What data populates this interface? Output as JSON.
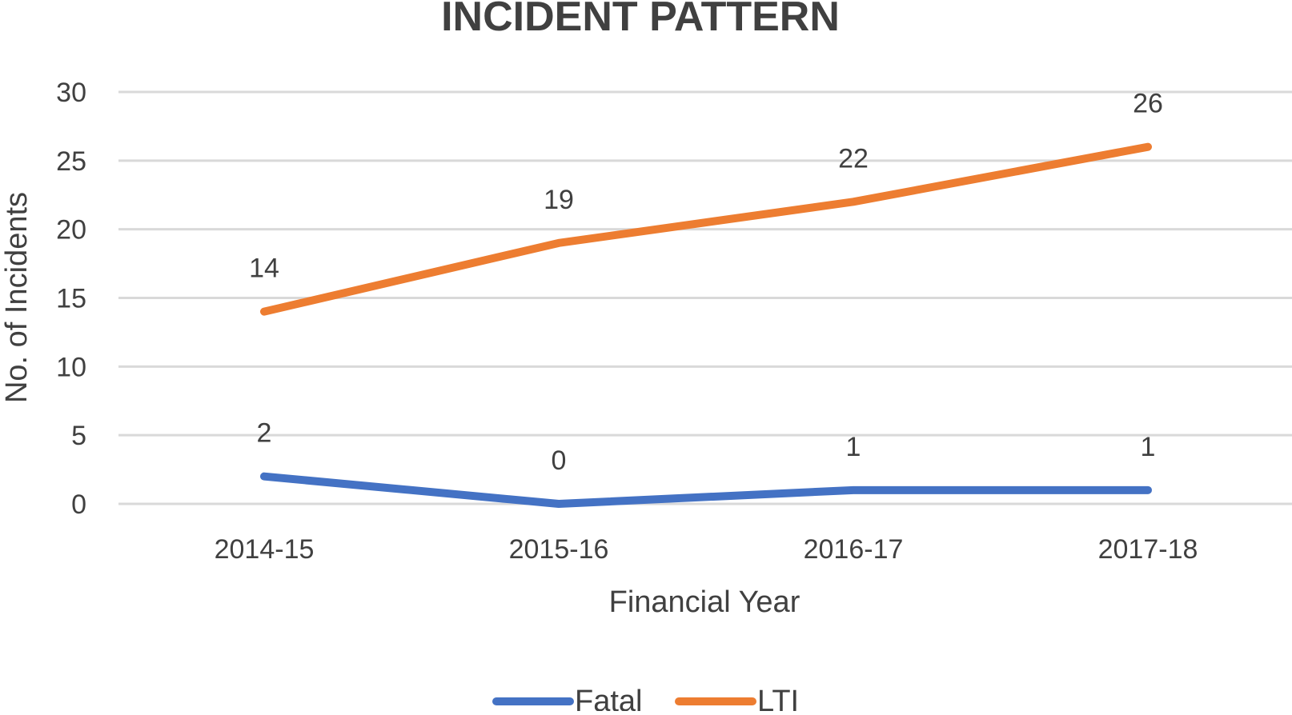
{
  "chart_data": {
    "type": "line",
    "title": "INCIDENT PATTERN",
    "xlabel": "Financial Year",
    "ylabel": "No. of Incidents",
    "categories": [
      "2014-15",
      "2015-16",
      "2016-17",
      "2017-18"
    ],
    "series": [
      {
        "name": "Fatal",
        "values": [
          2,
          0,
          1,
          1
        ],
        "color": "#4472C4"
      },
      {
        "name": "LTI",
        "values": [
          14,
          19,
          22,
          26
        ],
        "color": "#ED7D31"
      }
    ],
    "ylim": [
      0,
      30
    ],
    "yticks": [
      0,
      5,
      10,
      15,
      20,
      25,
      30
    ],
    "grid": true,
    "legend_position": "bottom",
    "gridline_color": "#D9D9D9"
  }
}
